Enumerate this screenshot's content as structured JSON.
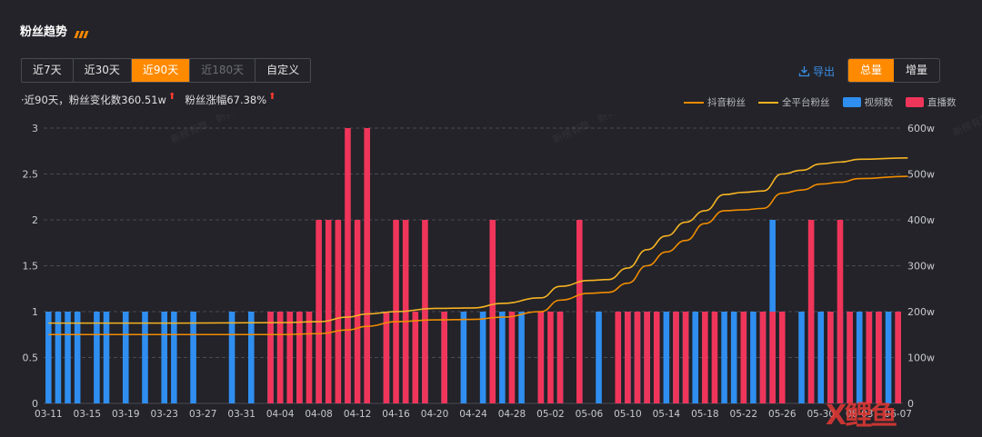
{
  "title": "粉丝趋势",
  "ranges": [
    {
      "label": "近7天",
      "state": "normal"
    },
    {
      "label": "近30天",
      "state": "normal"
    },
    {
      "label": "近90天",
      "state": "active"
    },
    {
      "label": "近180天",
      "state": "disabled"
    },
    {
      "label": "自定义",
      "state": "normal"
    }
  ],
  "export_label": "导出",
  "toggles": [
    {
      "label": "总量",
      "active": true
    },
    {
      "label": "增量",
      "active": false
    }
  ],
  "summary": {
    "change_text": "·近90天，粉丝变化数360.51w",
    "growth_text": "粉丝涨幅67.38%",
    "up_glyph": "⬆"
  },
  "watermark": "新榜有数 · 新抖",
  "logo_text": "X鲤鱼",
  "colors": {
    "douyin_fans": "#f08c00",
    "all_platform_fans": "#f5b323",
    "video_count": "#2f8ef0",
    "live_count": "#f0355a",
    "grid": "#4a4a52",
    "axis_text": "#c8c8d0"
  },
  "chart_data": {
    "type": "bar",
    "title": "",
    "legend_placement": "top-right",
    "legend": [
      "抖音粉丝",
      "全平台粉丝",
      "视频数",
      "直播数"
    ],
    "x_tick_labels": [
      "03-11",
      "03-15",
      "03-19",
      "03-23",
      "03-27",
      "03-31",
      "04-04",
      "04-08",
      "04-12",
      "04-16",
      "04-20",
      "04-24",
      "04-28",
      "05-02",
      "05-06",
      "05-10",
      "05-14",
      "05-18",
      "05-22",
      "05-26",
      "05-30",
      "06-03",
      "06-07"
    ],
    "x_start": "03-11",
    "x_end": "06-08",
    "ylim_left": [
      0,
      3
    ],
    "y_ticks_left": [
      "0",
      "0.5",
      "1",
      "1.5",
      "2",
      "2.5",
      "3"
    ],
    "ylim_right": [
      0,
      600
    ],
    "y_ticks_right": [
      "0",
      "100w",
      "200w",
      "300w",
      "400w",
      "500w",
      "600w"
    ],
    "grid": true,
    "series": [
      {
        "name": "视频数",
        "kind": "bar",
        "axis": "left",
        "points": [
          [
            "03-11",
            1
          ],
          [
            "03-12",
            1
          ],
          [
            "03-13",
            1
          ],
          [
            "03-14",
            1
          ],
          [
            "03-16",
            1
          ],
          [
            "03-17",
            1
          ],
          [
            "03-19",
            1
          ],
          [
            "03-21",
            1
          ],
          [
            "03-23",
            1
          ],
          [
            "03-24",
            1
          ],
          [
            "03-26",
            1
          ],
          [
            "03-30",
            1
          ],
          [
            "04-01",
            1
          ],
          [
            "04-03",
            1
          ],
          [
            "04-04",
            1
          ],
          [
            "04-05",
            1
          ],
          [
            "04-06",
            1
          ],
          [
            "04-08",
            1
          ],
          [
            "04-11",
            1
          ],
          [
            "04-13",
            1
          ],
          [
            "04-15",
            1
          ],
          [
            "04-17",
            1
          ],
          [
            "04-19",
            1
          ],
          [
            "04-21",
            1
          ],
          [
            "04-23",
            1
          ],
          [
            "04-25",
            1
          ],
          [
            "04-27",
            1
          ],
          [
            "04-29",
            1
          ],
          [
            "05-01",
            1
          ],
          [
            "05-03",
            1
          ],
          [
            "05-05",
            1
          ],
          [
            "05-07",
            1
          ],
          [
            "05-09",
            1
          ],
          [
            "05-10",
            1
          ],
          [
            "05-11",
            1
          ],
          [
            "05-12",
            1
          ],
          [
            "05-13",
            1
          ],
          [
            "05-14",
            1
          ],
          [
            "05-15",
            1
          ],
          [
            "05-16",
            1
          ],
          [
            "05-17",
            1
          ],
          [
            "05-20",
            1
          ],
          [
            "05-21",
            1
          ],
          [
            "05-22",
            1
          ],
          [
            "05-23",
            1
          ],
          [
            "05-24",
            1
          ],
          [
            "05-25",
            2
          ],
          [
            "05-28",
            1
          ],
          [
            "05-29",
            1
          ],
          [
            "05-30",
            1
          ],
          [
            "05-31",
            1
          ],
          [
            "06-01",
            1
          ],
          [
            "06-02",
            1
          ],
          [
            "06-03",
            1
          ],
          [
            "06-04",
            1
          ],
          [
            "06-05",
            1
          ],
          [
            "06-06",
            1
          ],
          [
            "06-07",
            1
          ]
        ]
      },
      {
        "name": "直播数",
        "kind": "bar",
        "axis": "left",
        "points": [
          [
            "04-03",
            1
          ],
          [
            "04-04",
            1
          ],
          [
            "04-05",
            1
          ],
          [
            "04-06",
            1
          ],
          [
            "04-07",
            1
          ],
          [
            "04-08",
            2
          ],
          [
            "04-09",
            2
          ],
          [
            "04-10",
            2
          ],
          [
            "04-11",
            3
          ],
          [
            "04-12",
            2
          ],
          [
            "04-13",
            3
          ],
          [
            "04-15",
            1
          ],
          [
            "04-16",
            2
          ],
          [
            "04-17",
            2
          ],
          [
            "04-18",
            1
          ],
          [
            "04-19",
            2
          ],
          [
            "04-21",
            1
          ],
          [
            "04-26",
            2
          ],
          [
            "04-28",
            1
          ],
          [
            "05-01",
            1
          ],
          [
            "05-02",
            1
          ],
          [
            "05-03",
            1
          ],
          [
            "05-05",
            2
          ],
          [
            "05-09",
            1
          ],
          [
            "05-10",
            1
          ],
          [
            "05-11",
            1
          ],
          [
            "05-12",
            1
          ],
          [
            "05-13",
            1
          ],
          [
            "05-15",
            1
          ],
          [
            "05-16",
            1
          ],
          [
            "05-18",
            1
          ],
          [
            "05-19",
            1
          ],
          [
            "05-22",
            1
          ],
          [
            "05-24",
            1
          ],
          [
            "05-25",
            1
          ],
          [
            "05-26",
            1
          ],
          [
            "05-29",
            2
          ],
          [
            "05-31",
            1
          ],
          [
            "06-01",
            2
          ],
          [
            "06-02",
            1
          ],
          [
            "06-04",
            1
          ],
          [
            "06-05",
            1
          ],
          [
            "06-07",
            1
          ]
        ]
      },
      {
        "name": "抖音粉丝",
        "kind": "line",
        "axis": "right",
        "unit": "w",
        "points": [
          [
            "03-11",
            150
          ],
          [
            "03-25",
            150
          ],
          [
            "04-04",
            150
          ],
          [
            "04-08",
            152
          ],
          [
            "04-11",
            160
          ],
          [
            "04-13",
            168
          ],
          [
            "04-16",
            178
          ],
          [
            "04-20",
            182
          ],
          [
            "04-24",
            183
          ],
          [
            "04-27",
            188
          ],
          [
            "05-01",
            200
          ],
          [
            "05-03",
            225
          ],
          [
            "05-06",
            240
          ],
          [
            "05-08",
            242
          ],
          [
            "05-10",
            262
          ],
          [
            "05-12",
            300
          ],
          [
            "05-14",
            330
          ],
          [
            "05-16",
            355
          ],
          [
            "05-18",
            392
          ],
          [
            "05-20",
            420
          ],
          [
            "05-22",
            422
          ],
          [
            "05-24",
            425
          ],
          [
            "05-26",
            458
          ],
          [
            "05-28",
            465
          ],
          [
            "05-30",
            478
          ],
          [
            "06-01",
            482
          ],
          [
            "06-03",
            490
          ],
          [
            "06-08",
            495
          ]
        ]
      },
      {
        "name": "全平台粉丝",
        "kind": "line",
        "axis": "right",
        "unit": "w",
        "points": [
          [
            "03-11",
            175
          ],
          [
            "03-25",
            175
          ],
          [
            "04-04",
            176
          ],
          [
            "04-08",
            178
          ],
          [
            "04-11",
            188
          ],
          [
            "04-13",
            195
          ],
          [
            "04-16",
            200
          ],
          [
            "04-20",
            207
          ],
          [
            "04-24",
            208
          ],
          [
            "04-27",
            218
          ],
          [
            "05-01",
            230
          ],
          [
            "05-03",
            255
          ],
          [
            "05-06",
            268
          ],
          [
            "05-08",
            270
          ],
          [
            "05-10",
            295
          ],
          [
            "05-12",
            335
          ],
          [
            "05-14",
            365
          ],
          [
            "05-16",
            395
          ],
          [
            "05-18",
            420
          ],
          [
            "05-20",
            455
          ],
          [
            "05-22",
            460
          ],
          [
            "05-24",
            463
          ],
          [
            "05-26",
            500
          ],
          [
            "05-28",
            508
          ],
          [
            "05-30",
            522
          ],
          [
            "06-01",
            526
          ],
          [
            "06-03",
            532
          ],
          [
            "06-08",
            535
          ]
        ]
      }
    ]
  }
}
